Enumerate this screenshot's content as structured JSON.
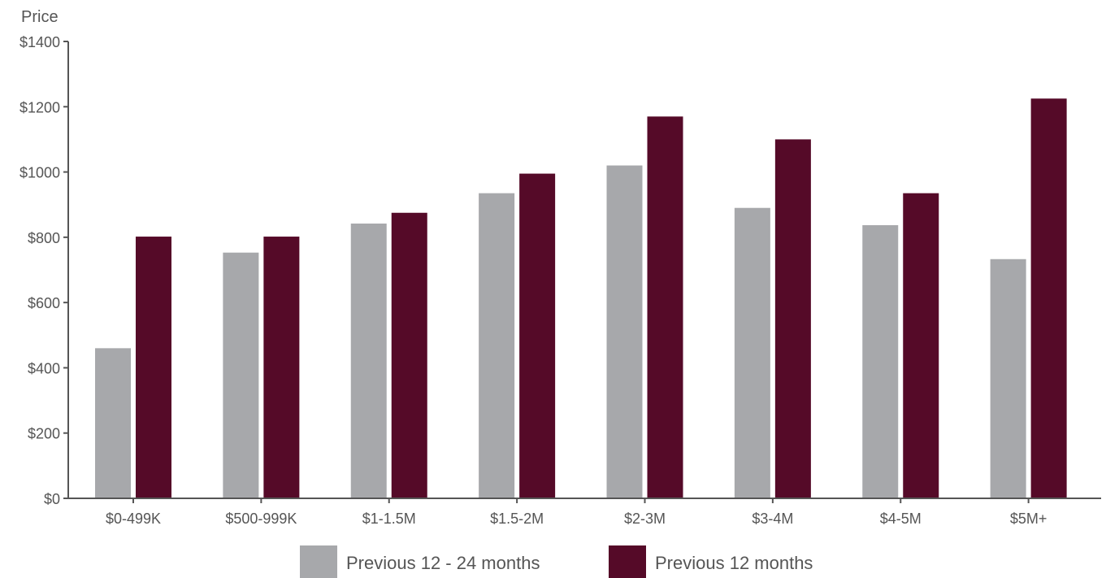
{
  "colors": {
    "series_prev_12_24": "#a7a8ab",
    "series_prev_12": "#550a28",
    "axis": "#555555",
    "text": "#555555"
  },
  "chart_data": {
    "type": "bar",
    "title": "",
    "xlabel": "",
    "ylabel": "Price",
    "ylim": [
      0,
      1400
    ],
    "yticks": [
      0,
      200,
      400,
      600,
      800,
      1000,
      1200,
      1400
    ],
    "ytick_labels": [
      "$0",
      "$200",
      "$400",
      "$600",
      "$800",
      "$1000",
      "$1200",
      "$1400"
    ],
    "grid": false,
    "legend_position": "bottom",
    "categories": [
      "$0-499K",
      "$500-999K",
      "$1-1.5M",
      "$1.5-2M",
      "$2-3M",
      "$3-4M",
      "$4-5M",
      "$5M+"
    ],
    "series": [
      {
        "name": "Previous 12 - 24 months",
        "color": "#a7a8ab",
        "values": [
          460,
          753,
          842,
          935,
          1020,
          890,
          837,
          733
        ]
      },
      {
        "name": "Previous 12 months",
        "color": "#550a28",
        "values": [
          802,
          802,
          875,
          995,
          1170,
          1100,
          935,
          1225
        ]
      }
    ]
  }
}
